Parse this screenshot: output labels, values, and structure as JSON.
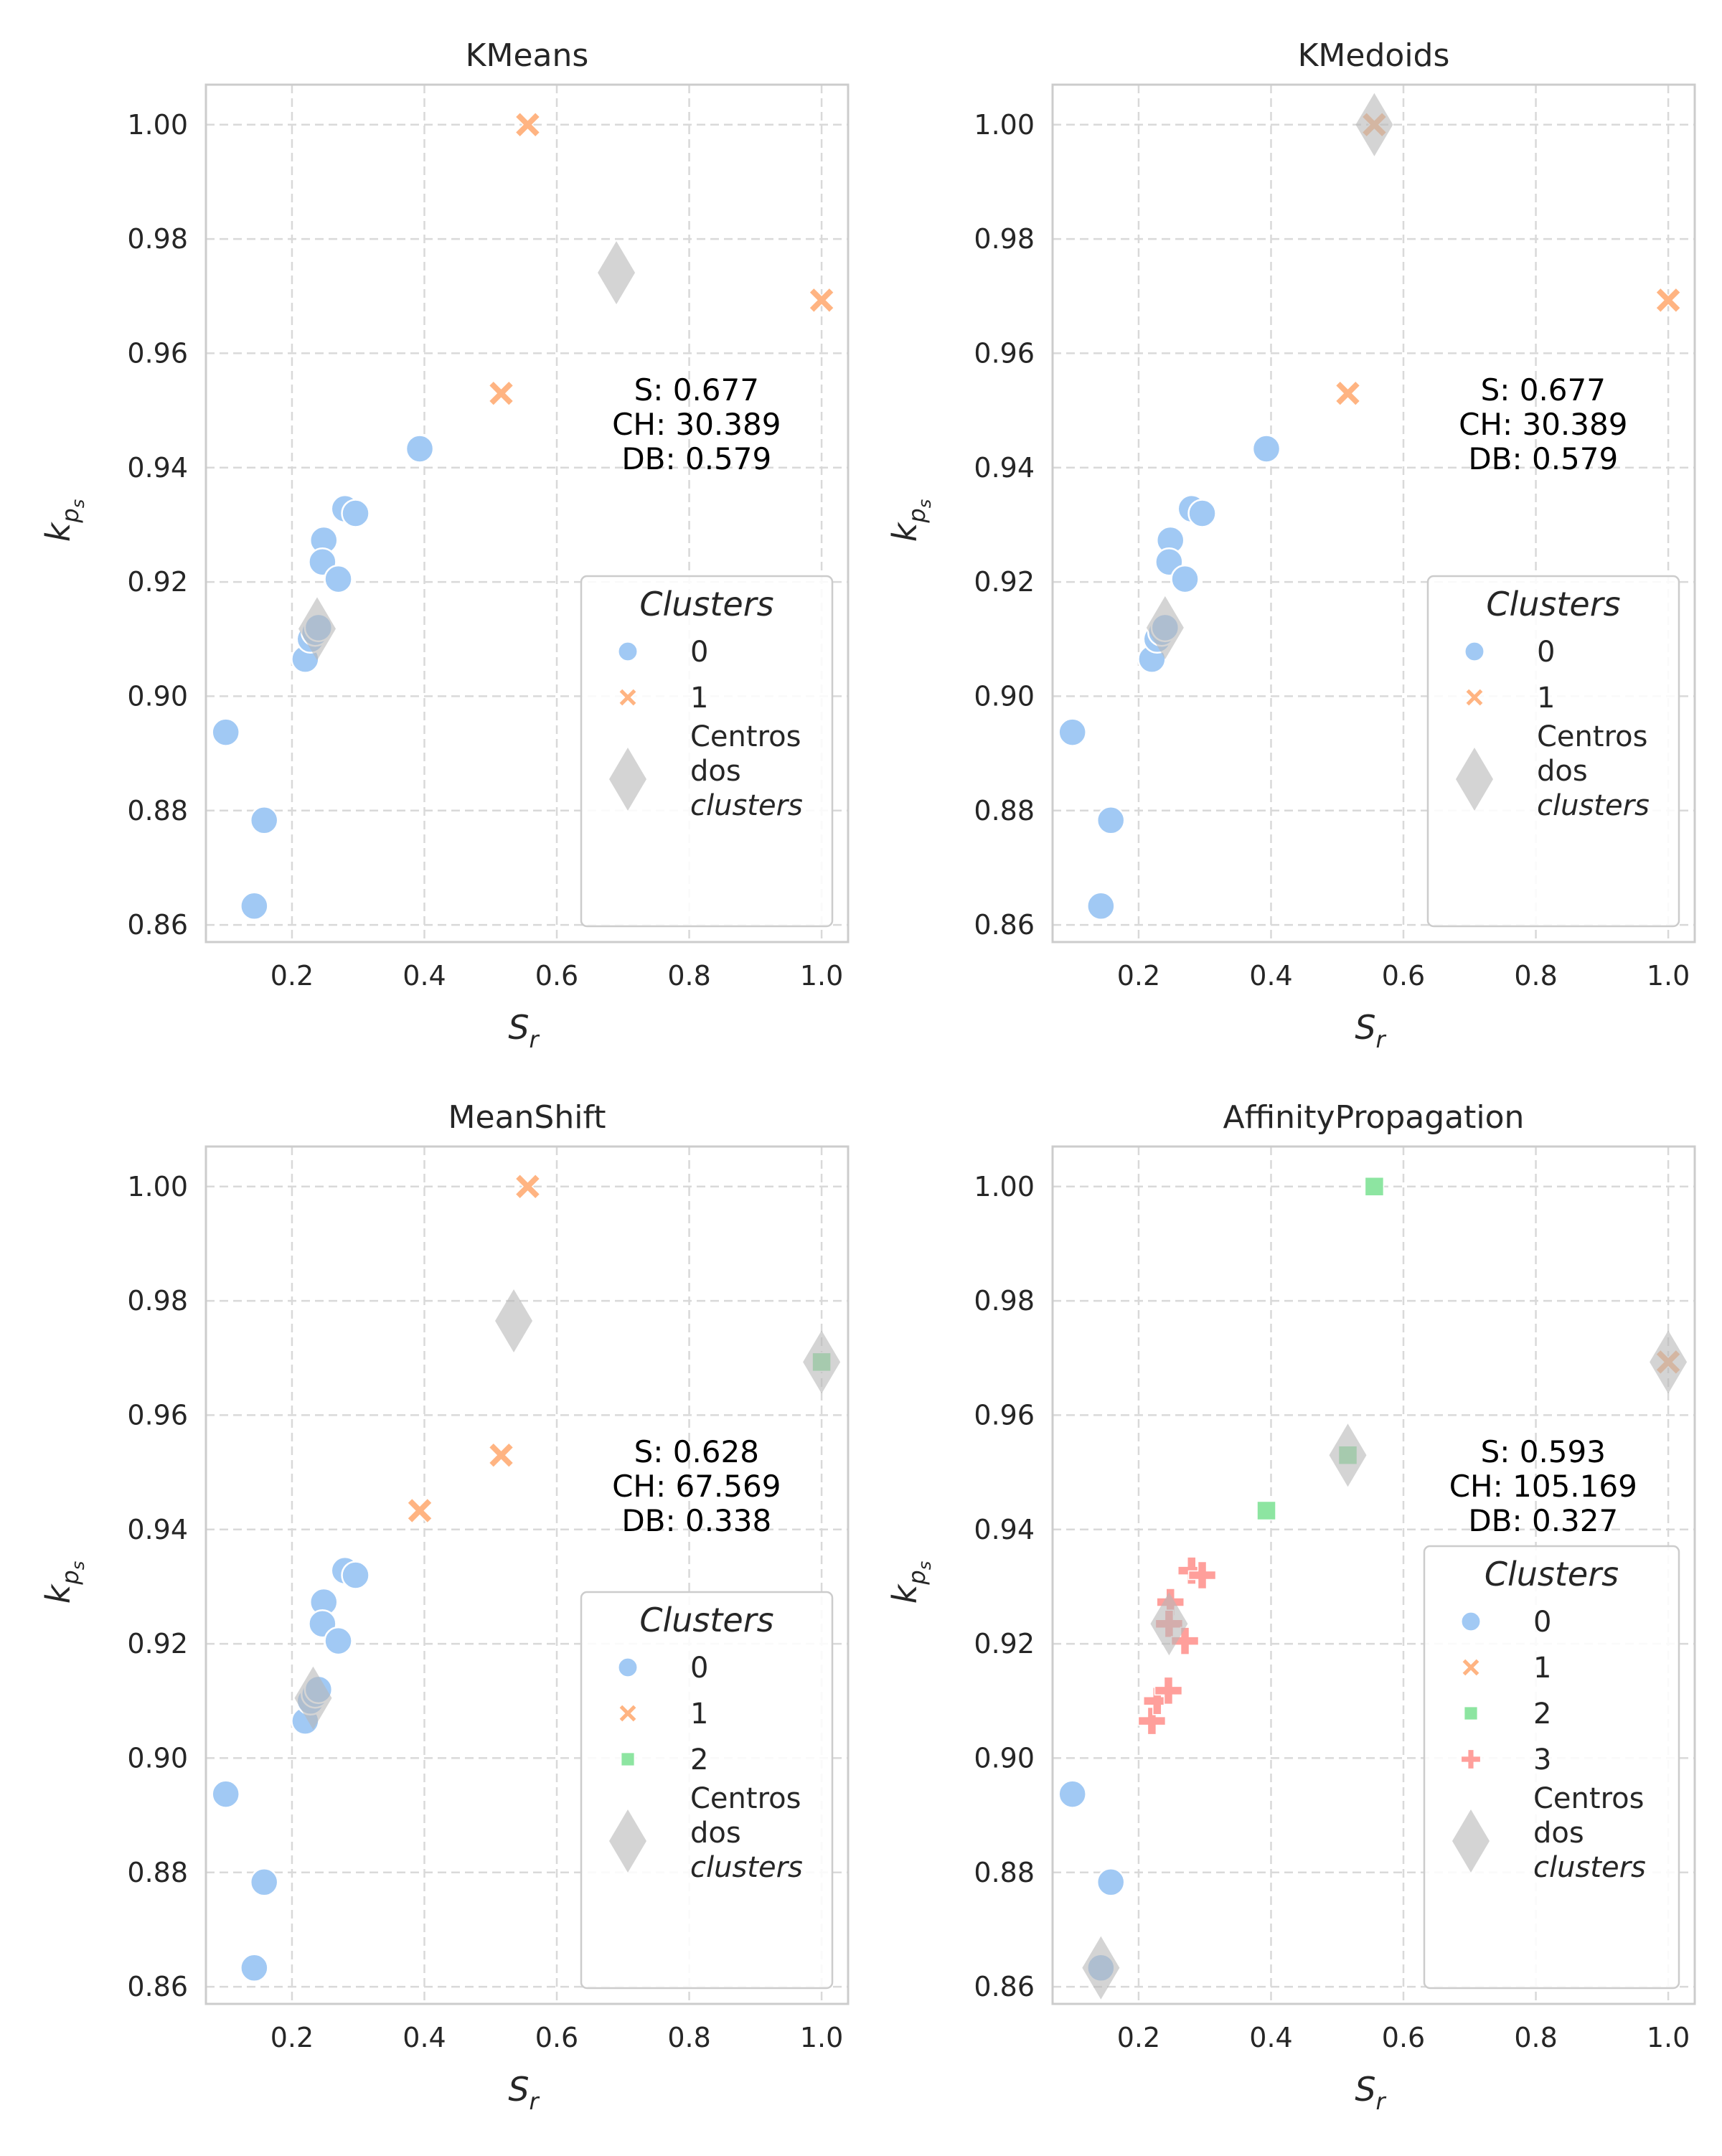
{
  "colors": {
    "cluster_0": "#a1c9f4",
    "cluster_1": "#ffb482",
    "cluster_2": "#8de5a1",
    "cluster_3": "#ff9f9b",
    "centers": "#b8b8b8",
    "grid": "#d9d9d9",
    "spine": "#cccccc"
  },
  "chart_data": [
    {
      "type": "scatter",
      "title": "KMeans",
      "xlabel": "S_r",
      "ylabel": "k_ps",
      "xlim": [
        0.07,
        1.04
      ],
      "ylim": [
        0.857,
        1.007
      ],
      "xticks": [
        0.2,
        0.4,
        0.6,
        0.8,
        1.0
      ],
      "yticks": [
        0.86,
        0.88,
        0.9,
        0.92,
        0.94,
        0.96,
        0.98,
        1.0
      ],
      "grid": true,
      "legend_position": "lower-right",
      "metrics": [
        "S: 0.677",
        "CH: 30.389",
        "DB: 0.579"
      ],
      "legend": {
        "title": "Clusters",
        "entries": [
          "0",
          "1"
        ],
        "centers_label": [
          "Centros",
          "dos",
          "clusters"
        ]
      },
      "points": [
        {
          "x": 0.1,
          "y": 0.8937,
          "c": 0
        },
        {
          "x": 0.158,
          "y": 0.8783,
          "c": 0
        },
        {
          "x": 0.143,
          "y": 0.8633,
          "c": 0
        },
        {
          "x": 0.22,
          "y": 0.9065,
          "c": 0
        },
        {
          "x": 0.228,
          "y": 0.91,
          "c": 0
        },
        {
          "x": 0.235,
          "y": 0.9112,
          "c": 0
        },
        {
          "x": 0.24,
          "y": 0.912,
          "c": 0
        },
        {
          "x": 0.248,
          "y": 0.9273,
          "c": 0
        },
        {
          "x": 0.246,
          "y": 0.9235,
          "c": 0
        },
        {
          "x": 0.27,
          "y": 0.9205,
          "c": 0
        },
        {
          "x": 0.28,
          "y": 0.9328,
          "c": 0
        },
        {
          "x": 0.296,
          "y": 0.932,
          "c": 0
        },
        {
          "x": 0.393,
          "y": 0.9433,
          "c": 0
        },
        {
          "x": 0.556,
          "y": 1.0,
          "c": 1
        },
        {
          "x": 0.516,
          "y": 0.953,
          "c": 1
        },
        {
          "x": 1.0,
          "y": 0.9693,
          "c": 1
        }
      ],
      "centers": [
        {
          "x": 0.238,
          "y": 0.9118
        },
        {
          "x": 0.69,
          "y": 0.9741
        }
      ]
    },
    {
      "type": "scatter",
      "title": "KMedoids",
      "xlabel": "S_r",
      "ylabel": "k_ps",
      "xlim": [
        0.07,
        1.04
      ],
      "ylim": [
        0.857,
        1.007
      ],
      "xticks": [
        0.2,
        0.4,
        0.6,
        0.8,
        1.0
      ],
      "yticks": [
        0.86,
        0.88,
        0.9,
        0.92,
        0.94,
        0.96,
        0.98,
        1.0
      ],
      "grid": true,
      "legend_position": "lower-right",
      "metrics": [
        "S: 0.677",
        "CH: 30.389",
        "DB: 0.579"
      ],
      "legend": {
        "title": "Clusters",
        "entries": [
          "0",
          "1"
        ],
        "centers_label": [
          "Centros",
          "dos",
          "clusters"
        ]
      },
      "points": [
        {
          "x": 0.1,
          "y": 0.8937,
          "c": 0
        },
        {
          "x": 0.158,
          "y": 0.8783,
          "c": 0
        },
        {
          "x": 0.143,
          "y": 0.8633,
          "c": 0
        },
        {
          "x": 0.22,
          "y": 0.9065,
          "c": 0
        },
        {
          "x": 0.228,
          "y": 0.91,
          "c": 0
        },
        {
          "x": 0.235,
          "y": 0.9112,
          "c": 0
        },
        {
          "x": 0.24,
          "y": 0.912,
          "c": 0
        },
        {
          "x": 0.248,
          "y": 0.9273,
          "c": 0
        },
        {
          "x": 0.246,
          "y": 0.9235,
          "c": 0
        },
        {
          "x": 0.27,
          "y": 0.9205,
          "c": 0
        },
        {
          "x": 0.28,
          "y": 0.9328,
          "c": 0
        },
        {
          "x": 0.296,
          "y": 0.932,
          "c": 0
        },
        {
          "x": 0.393,
          "y": 0.9433,
          "c": 0
        },
        {
          "x": 0.556,
          "y": 1.0,
          "c": 1
        },
        {
          "x": 0.516,
          "y": 0.953,
          "c": 1
        },
        {
          "x": 1.0,
          "y": 0.9693,
          "c": 1
        }
      ],
      "centers": [
        {
          "x": 0.24,
          "y": 0.912
        },
        {
          "x": 0.556,
          "y": 1.0
        }
      ]
    },
    {
      "type": "scatter",
      "title": "MeanShift",
      "xlabel": "S_r",
      "ylabel": "k_ps",
      "xlim": [
        0.07,
        1.04
      ],
      "ylim": [
        0.857,
        1.007
      ],
      "xticks": [
        0.2,
        0.4,
        0.6,
        0.8,
        1.0
      ],
      "yticks": [
        0.86,
        0.88,
        0.9,
        0.92,
        0.94,
        0.96,
        0.98,
        1.0
      ],
      "grid": true,
      "legend_position": "lower-right",
      "metrics": [
        "S: 0.628",
        "CH: 67.569",
        "DB: 0.338"
      ],
      "legend": {
        "title": "Clusters",
        "entries": [
          "0",
          "1",
          "2"
        ],
        "centers_label": [
          "Centros",
          "dos",
          "clusters"
        ]
      },
      "points": [
        {
          "x": 0.1,
          "y": 0.8937,
          "c": 0
        },
        {
          "x": 0.158,
          "y": 0.8783,
          "c": 0
        },
        {
          "x": 0.143,
          "y": 0.8633,
          "c": 0
        },
        {
          "x": 0.22,
          "y": 0.9065,
          "c": 0
        },
        {
          "x": 0.228,
          "y": 0.91,
          "c": 0
        },
        {
          "x": 0.235,
          "y": 0.9112,
          "c": 0
        },
        {
          "x": 0.24,
          "y": 0.912,
          "c": 0
        },
        {
          "x": 0.248,
          "y": 0.9273,
          "c": 0
        },
        {
          "x": 0.246,
          "y": 0.9235,
          "c": 0
        },
        {
          "x": 0.27,
          "y": 0.9205,
          "c": 0
        },
        {
          "x": 0.28,
          "y": 0.9328,
          "c": 0
        },
        {
          "x": 0.296,
          "y": 0.932,
          "c": 0
        },
        {
          "x": 0.393,
          "y": 0.9433,
          "c": 1
        },
        {
          "x": 0.556,
          "y": 1.0,
          "c": 1
        },
        {
          "x": 0.516,
          "y": 0.953,
          "c": 1
        },
        {
          "x": 1.0,
          "y": 0.9693,
          "c": 2
        }
      ],
      "centers": [
        {
          "x": 0.232,
          "y": 0.9105
        },
        {
          "x": 0.535,
          "y": 0.9765
        },
        {
          "x": 1.0,
          "y": 0.9693
        }
      ]
    },
    {
      "type": "scatter",
      "title": "AffinityPropagation",
      "xlabel": "S_r",
      "ylabel": "k_ps",
      "xlim": [
        0.07,
        1.04
      ],
      "ylim": [
        0.857,
        1.007
      ],
      "xticks": [
        0.2,
        0.4,
        0.6,
        0.8,
        1.0
      ],
      "yticks": [
        0.86,
        0.88,
        0.9,
        0.92,
        0.94,
        0.96,
        0.98,
        1.0
      ],
      "grid": true,
      "legend_position": "lower-right",
      "metrics": [
        "S: 0.593",
        "CH: 105.169",
        "DB: 0.327"
      ],
      "legend": {
        "title": "Clusters",
        "entries": [
          "0",
          "1",
          "2",
          "3"
        ],
        "centers_label": [
          "Centros",
          "dos",
          "clusters"
        ]
      },
      "points": [
        {
          "x": 0.1,
          "y": 0.8937,
          "c": 0
        },
        {
          "x": 0.158,
          "y": 0.8783,
          "c": 0
        },
        {
          "x": 0.143,
          "y": 0.8633,
          "c": 0
        },
        {
          "x": 0.22,
          "y": 0.9065,
          "c": 3
        },
        {
          "x": 0.228,
          "y": 0.91,
          "c": 3
        },
        {
          "x": 0.245,
          "y": 0.9118,
          "c": 3
        },
        {
          "x": 0.248,
          "y": 0.9273,
          "c": 3
        },
        {
          "x": 0.246,
          "y": 0.9235,
          "c": 3
        },
        {
          "x": 0.27,
          "y": 0.9205,
          "c": 3
        },
        {
          "x": 0.28,
          "y": 0.9328,
          "c": 3
        },
        {
          "x": 0.296,
          "y": 0.932,
          "c": 3
        },
        {
          "x": 0.393,
          "y": 0.9433,
          "c": 2
        },
        {
          "x": 0.556,
          "y": 1.0,
          "c": 2
        },
        {
          "x": 0.516,
          "y": 0.953,
          "c": 2
        },
        {
          "x": 1.0,
          "y": 0.9693,
          "c": 1
        }
      ],
      "centers": [
        {
          "x": 0.143,
          "y": 0.8633
        },
        {
          "x": 1.0,
          "y": 0.9693
        },
        {
          "x": 0.516,
          "y": 0.953
        },
        {
          "x": 0.246,
          "y": 0.9235
        }
      ]
    }
  ]
}
